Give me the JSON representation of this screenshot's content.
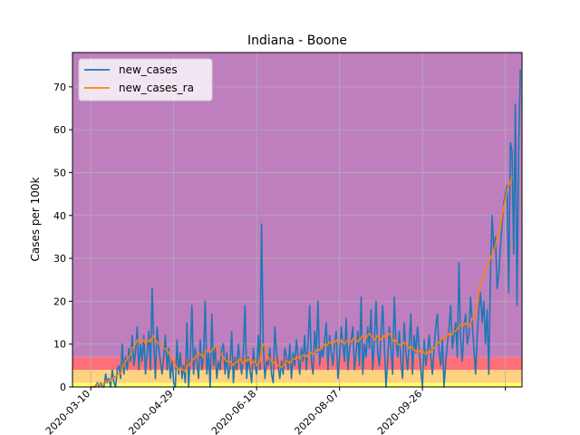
{
  "chart_data": {
    "type": "line",
    "title": "Indiana - Boone",
    "xlabel": "",
    "ylabel": "Cases per 100k",
    "ylim": [
      0,
      78
    ],
    "yticks": [
      0,
      10,
      20,
      30,
      40,
      50,
      60,
      70
    ],
    "xlim": [
      "2020-02-28",
      "2020-11-25"
    ],
    "xticks": [
      "2020-03-10",
      "2020-04-29",
      "2020-06-18",
      "2020-08-07",
      "2020-09-26",
      "2020-11-15"
    ],
    "xtick_labels": [
      "2020-03-10",
      "2020-04-29",
      "2020-06-18",
      "2020-08-07",
      "2020-09-26",
      ""
    ],
    "grid": true,
    "legend_position": "top-left",
    "bands": [
      {
        "from": 0,
        "to": 1,
        "color": "#ffff66"
      },
      {
        "from": 1,
        "to": 4,
        "color": "#ffd27f"
      },
      {
        "from": 4,
        "to": 7,
        "color": "#ff6f7a"
      },
      {
        "from": 7,
        "to": 78,
        "color": "#bf7fbf"
      }
    ],
    "series": [
      {
        "name": "new_cases",
        "color": "#1f77b4",
        "start_date": "2020-03-10",
        "values": [
          0,
          0,
          0,
          0,
          1,
          0,
          1,
          0,
          0,
          3,
          1,
          2,
          0,
          4,
          1,
          0,
          4,
          5,
          2,
          10,
          3,
          7,
          4,
          9,
          6,
          12,
          5,
          8,
          14,
          4,
          10,
          6,
          12,
          3,
          8,
          13,
          4,
          23,
          10,
          2,
          14,
          9,
          6,
          3,
          7,
          12,
          4,
          9,
          2,
          6,
          1,
          0,
          11,
          3,
          8,
          2,
          5,
          1,
          15,
          0,
          7,
          19,
          3,
          9,
          6,
          2,
          11,
          4,
          7,
          20,
          3,
          8,
          0,
          17,
          5,
          9,
          2,
          6,
          4,
          9,
          10,
          3,
          8,
          2,
          5,
          13,
          1,
          7,
          4,
          10,
          6,
          3,
          8,
          19,
          2,
          7,
          4,
          1,
          9,
          5,
          3,
          12,
          4,
          38,
          10,
          2,
          6,
          5,
          9,
          3,
          1,
          14,
          8,
          5,
          2,
          6,
          3,
          9,
          7,
          4,
          10,
          2,
          8,
          5,
          11,
          7,
          3,
          9,
          6,
          12,
          4,
          10,
          19,
          6,
          3,
          13,
          8,
          20,
          5,
          9,
          7,
          11,
          15,
          4,
          12,
          8,
          5,
          10,
          13,
          2,
          7,
          14,
          10,
          6,
          16,
          4,
          9,
          11,
          14,
          4,
          8,
          13,
          5,
          21,
          3,
          10,
          7,
          14,
          9,
          18,
          4,
          11,
          20,
          8,
          5,
          12,
          19,
          10,
          0,
          6,
          14,
          9,
          3,
          21,
          11,
          7,
          13,
          6,
          2,
          15,
          8,
          4,
          10,
          17,
          3,
          12,
          8,
          14,
          9,
          4,
          0,
          11,
          5,
          8,
          12,
          7,
          3,
          9,
          14,
          17,
          8,
          5,
          11,
          0,
          6,
          10,
          14,
          19,
          9,
          12,
          15,
          7,
          29,
          11,
          6,
          14,
          17,
          10,
          12,
          21,
          15,
          9,
          3,
          12,
          18,
          22,
          15,
          20,
          10,
          18,
          3,
          27,
          40,
          32,
          35,
          23,
          26,
          33,
          38,
          43,
          45,
          47,
          22,
          57,
          55,
          31,
          66,
          19,
          56,
          74
        ]
      },
      {
        "name": "new_cases_ra",
        "color": "#ff7f0e",
        "start_date": "2020-03-10",
        "values": [
          0,
          0,
          0,
          0.5,
          0.6,
          0.5,
          0.6,
          0.7,
          0.6,
          1,
          1.2,
          1.5,
          1.3,
          2,
          2.2,
          2.5,
          2.8,
          3.2,
          3,
          4.5,
          5,
          6,
          6.5,
          7,
          7.5,
          9,
          9.5,
          10,
          11,
          10.5,
          11,
          10.5,
          11,
          10,
          10.5,
          11,
          10.5,
          11.5,
          12,
          11,
          10.5,
          10,
          10,
          9.5,
          9,
          9,
          8.5,
          8,
          7,
          6.5,
          6,
          5,
          4.5,
          4,
          4.5,
          4,
          4,
          3.5,
          5,
          5,
          5.5,
          6,
          6.5,
          7,
          7.5,
          8,
          7.5,
          7.5,
          7,
          8,
          8.5,
          8.5,
          8,
          8.5,
          9,
          9.5,
          9,
          8.5,
          8,
          7.5,
          7,
          6.5,
          6,
          6,
          6,
          5.5,
          5,
          5.5,
          6,
          6,
          6.5,
          6,
          5.5,
          6.5,
          6,
          6.5,
          6,
          5.5,
          6,
          6,
          5,
          5.5,
          6,
          9,
          10,
          9.5,
          8,
          7,
          6.5,
          6,
          5.5,
          6,
          5.5,
          5,
          5,
          4.5,
          5,
          5.5,
          6,
          6,
          5.5,
          6,
          6.5,
          6.5,
          7,
          7,
          6.5,
          7,
          7.5,
          7.5,
          7,
          7.5,
          8,
          8,
          7.5,
          8,
          8.5,
          9,
          8.5,
          9,
          9.5,
          10,
          9.5,
          10,
          10.5,
          10,
          10,
          10.5,
          11,
          10.5,
          10.5,
          11,
          10.5,
          10,
          10.5,
          11,
          11,
          10.5,
          11,
          11.5,
          11,
          10.5,
          11,
          11.5,
          12,
          11,
          11.5,
          12,
          12.5,
          12,
          11.5,
          11,
          11.5,
          12,
          11.5,
          11,
          11.5,
          12,
          11.5,
          12,
          12.5,
          12,
          11,
          10.5,
          11,
          10,
          10,
          9.5,
          10,
          10.5,
          10,
          9.5,
          9,
          9.5,
          9,
          8.5,
          8.5,
          8,
          8.5,
          8,
          8.5,
          8,
          7.5,
          8,
          8.5,
          8,
          9,
          9,
          9.5,
          10,
          10.5,
          11,
          11.5,
          11,
          11.5,
          12,
          12.5,
          12,
          12.5,
          13,
          13,
          13.5,
          14,
          14.5,
          14,
          14.5,
          15,
          14.5,
          14,
          15,
          16,
          16.5,
          17,
          19,
          22,
          24,
          25,
          26,
          27,
          28,
          29,
          30,
          31,
          32,
          33,
          35,
          36,
          37,
          40,
          42,
          44,
          46,
          47,
          48,
          49
        ]
      }
    ]
  }
}
